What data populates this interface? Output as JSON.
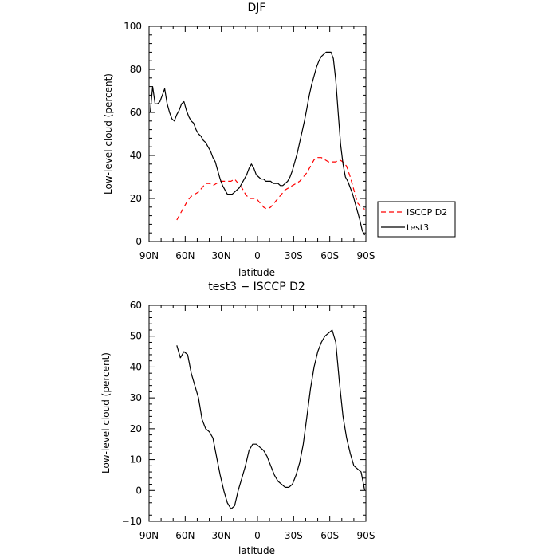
{
  "chart_data": [
    {
      "type": "line",
      "title": "DJF",
      "xlabel": "latitude",
      "ylabel": "Low-level cloud (percent)",
      "xlim": [
        90,
        -90
      ],
      "ylim": [
        0,
        100
      ],
      "xticks": [
        90,
        60,
        30,
        0,
        -30,
        -60,
        -90
      ],
      "xtick_labels": [
        "90N",
        "60N",
        "30N",
        "0",
        "30S",
        "60S",
        "90S"
      ],
      "yticks": [
        0,
        20,
        40,
        60,
        80,
        100
      ],
      "ytick_labels": [
        "0",
        "20",
        "40",
        "60",
        "80",
        "100"
      ],
      "legend": "right",
      "series": [
        {
          "name": "ISCCP D2",
          "color": "#ff0000",
          "dash": "dashed",
          "x": [
            67,
            64,
            61,
            58,
            55,
            52,
            49,
            46,
            43,
            40,
            37,
            34,
            31,
            28,
            25,
            22,
            19,
            16,
            13,
            10,
            7,
            4,
            1,
            -2,
            -5,
            -8,
            -11,
            -14,
            -17,
            -20,
            -23,
            -26,
            -29,
            -32,
            -35,
            -38,
            -41,
            -44,
            -47,
            -50,
            -53,
            -56,
            -59,
            -62,
            -65,
            -68,
            -71,
            -74,
            -77,
            -80,
            -83,
            -86,
            -89
          ],
          "y": [
            10,
            13,
            16,
            19,
            21,
            22,
            23,
            25,
            27,
            27,
            26,
            27,
            28,
            28,
            28,
            28,
            29,
            27,
            25,
            22,
            20,
            20,
            20,
            18,
            16,
            15,
            16,
            18,
            20,
            22,
            24,
            25,
            26,
            27,
            28,
            30,
            32,
            35,
            38,
            39,
            39,
            38,
            37,
            37,
            37,
            38,
            37,
            35,
            30,
            24,
            18,
            16,
            15
          ]
        },
        {
          "name": "test3",
          "color": "#000000",
          "dash": "solid",
          "x": [
            89,
            87,
            85,
            83,
            81,
            79,
            77,
            75,
            73,
            71,
            69,
            67,
            65,
            63,
            61,
            59,
            57,
            55,
            53,
            51,
            49,
            47,
            45,
            43,
            41,
            39,
            37,
            35,
            33,
            31,
            29,
            27,
            25,
            23,
            21,
            19,
            17,
            15,
            13,
            11,
            9,
            7,
            5,
            3,
            1,
            -1,
            -3,
            -5,
            -7,
            -9,
            -11,
            -13,
            -15,
            -17,
            -19,
            -21,
            -23,
            -25,
            -27,
            -29,
            -31,
            -33,
            -35,
            -37,
            -39,
            -41,
            -43,
            -45,
            -47,
            -49,
            -51,
            -53,
            -55,
            -57,
            -59,
            -61,
            -63,
            -65,
            -67,
            -69,
            -71,
            -73,
            -75,
            -77,
            -79,
            -81,
            -83,
            -85,
            -87,
            -89
          ],
          "y": [
            60,
            72,
            64,
            64,
            65,
            68,
            71,
            64,
            60,
            57,
            56,
            59,
            61,
            64,
            65,
            61,
            58,
            56,
            55,
            52,
            50,
            49,
            47,
            46,
            44,
            42,
            39,
            37,
            33,
            29,
            26,
            24,
            22,
            22,
            22,
            23,
            24,
            25,
            27,
            29,
            31,
            34,
            36,
            34,
            31,
            30,
            29,
            29,
            28,
            28,
            28,
            27,
            27,
            27,
            26,
            26,
            27,
            28,
            30,
            33,
            37,
            41,
            46,
            51,
            56,
            62,
            68,
            73,
            77,
            81,
            84,
            86,
            87,
            88,
            88,
            88,
            85,
            75,
            60,
            45,
            36,
            30,
            28,
            25,
            22,
            18,
            14,
            10,
            5,
            3
          ]
        }
      ]
    },
    {
      "type": "line",
      "title": "test3 − ISCCP D2",
      "xlabel": "latitude",
      "ylabel": "Low-level cloud (percent)",
      "xlim": [
        90,
        -90
      ],
      "ylim": [
        -10,
        60
      ],
      "xticks": [
        90,
        60,
        30,
        0,
        -30,
        -60,
        -90
      ],
      "xtick_labels": [
        "90N",
        "60N",
        "30N",
        "0",
        "30S",
        "60S",
        "90S"
      ],
      "yticks": [
        -10,
        0,
        10,
        20,
        30,
        40,
        50,
        60
      ],
      "ytick_labels": [
        "−10",
        "0",
        "10",
        "20",
        "30",
        "40",
        "50",
        "60"
      ],
      "series": [
        {
          "color": "#000000",
          "dash": "solid",
          "x": [
            67,
            64,
            61,
            58,
            55,
            52,
            49,
            46,
            43,
            40,
            37,
            34,
            31,
            28,
            25,
            22,
            19,
            16,
            13,
            10,
            7,
            4,
            1,
            -2,
            -5,
            -8,
            -11,
            -14,
            -17,
            -20,
            -23,
            -26,
            -29,
            -32,
            -35,
            -38,
            -41,
            -44,
            -47,
            -50,
            -53,
            -56,
            -59,
            -62,
            -65,
            -68,
            -71,
            -74,
            -77,
            -80,
            -83,
            -86,
            -89
          ],
          "y": [
            47,
            43,
            45,
            44,
            38,
            34,
            30,
            23,
            20,
            19,
            17,
            11,
            5,
            0,
            -4,
            -6,
            -5,
            0,
            4,
            8,
            13,
            15,
            15,
            14,
            13,
            11,
            8,
            5,
            3,
            2,
            1,
            1,
            2,
            5,
            9,
            15,
            24,
            33,
            40,
            45,
            48,
            50,
            51,
            52,
            48,
            35,
            24,
            17,
            12,
            8,
            7,
            6,
            0
          ]
        }
      ]
    }
  ]
}
